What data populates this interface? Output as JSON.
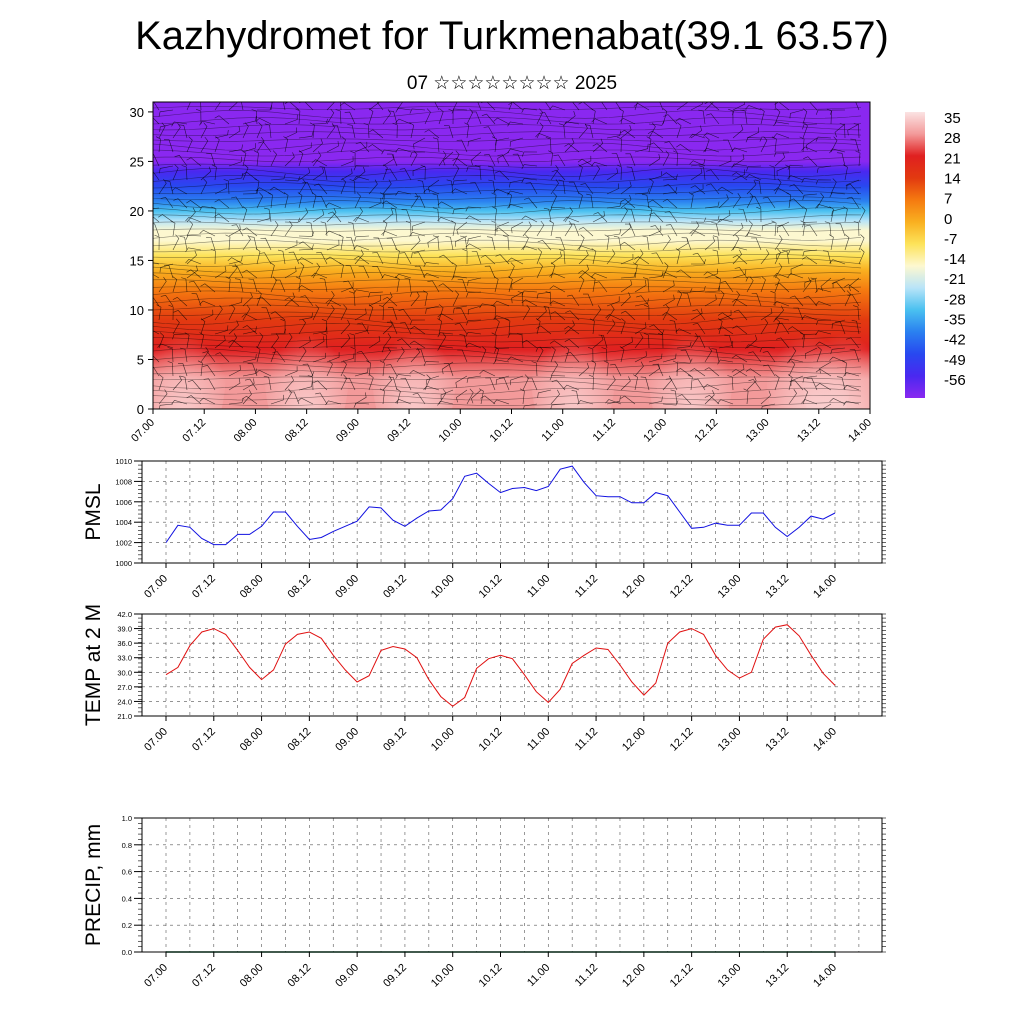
{
  "header": {
    "title": "Kazhydromet for Turkmenabat(39.1 63.57)",
    "subtitle": "07 ☆☆☆☆☆☆☆☆ 2025"
  },
  "time_ticks": [
    "07.00",
    "07.12",
    "08.00",
    "08.12",
    "09.00",
    "09.12",
    "10.00",
    "10.12",
    "11.00",
    "11.12",
    "12.00",
    "12.12",
    "13.00",
    "13.12",
    "14.00"
  ],
  "chart_data": [
    {
      "type": "heatmap",
      "title": "",
      "xlabel": "",
      "ylabel": "",
      "ylim": [
        0,
        31
      ],
      "y_ticks": [
        0,
        5,
        10,
        15,
        20,
        25,
        30
      ],
      "x_ticks": [
        "07.00",
        "07.12",
        "08.00",
        "08.12",
        "09.00",
        "09.12",
        "10.00",
        "10.12",
        "11.00",
        "11.12",
        "12.00",
        "12.12",
        "13.00",
        "13.12",
        "14.00"
      ],
      "colorbar": {
        "labels": [
          35,
          28,
          21,
          14,
          7,
          0,
          -7,
          -14,
          -21,
          -28,
          -35,
          -42,
          -49,
          -56
        ],
        "colors": [
          "#fbe3e3",
          "#f39a9a",
          "#e02020",
          "#e23a10",
          "#f57a10",
          "#f9b020",
          "#fde35a",
          "#fdf8d0",
          "#b8e4f8",
          "#4ac0f0",
          "#2a80f0",
          "#2848f0",
          "#4a28f0",
          "#8a28f0"
        ]
      },
      "profile": {
        "altitude": [
          0,
          3,
          6,
          9,
          12,
          14,
          15.5,
          17,
          18,
          19,
          20,
          21,
          22.5,
          24,
          25,
          26.5,
          28,
          31
        ],
        "temperature": [
          30,
          28,
          21,
          14,
          7,
          2,
          -4,
          -9,
          -13,
          -18,
          -24,
          -32,
          -40,
          -49,
          -56,
          -60,
          -62,
          -62
        ]
      },
      "wind_barbs": true
    },
    {
      "type": "line",
      "ylabel": "PMSL",
      "ylim": [
        1000,
        1010
      ],
      "y_ticks": [
        1000,
        1002,
        1004,
        1006,
        1008,
        1010
      ],
      "x_ticks": [
        "07.00",
        "07.12",
        "08.00",
        "08.12",
        "09.00",
        "09.12",
        "10.00",
        "10.12",
        "11.00",
        "11.12",
        "12.00",
        "12.12",
        "13.00",
        "13.12",
        "14.00"
      ],
      "series": [
        {
          "color": "#1010e0",
          "values": [
            1002.0,
            1003.7,
            1003.5,
            1002.4,
            1001.8,
            1001.8,
            1002.8,
            1002.8,
            1003.6,
            1005.0,
            1005.0,
            1003.6,
            1002.3,
            1002.5,
            1003.1,
            1003.6,
            1004.1,
            1005.5,
            1005.4,
            1004.2,
            1003.6,
            1004.4,
            1005.1,
            1005.2,
            1006.3,
            1008.5,
            1008.8,
            1007.8,
            1006.9,
            1007.3,
            1007.4,
            1007.1,
            1007.5,
            1009.2,
            1009.5,
            1007.9,
            1006.6,
            1006.5,
            1006.5,
            1005.9,
            1005.9,
            1006.9,
            1006.6,
            1005.0,
            1003.4,
            1003.5,
            1003.9,
            1003.7,
            1003.7,
            1004.9,
            1004.9,
            1003.5,
            1002.6,
            1003.5,
            1004.6,
            1004.3,
            1004.9
          ]
        }
      ]
    },
    {
      "type": "line",
      "ylabel": "TEMP at 2 M",
      "ylim": [
        21,
        42
      ],
      "y_ticks": [
        21.0,
        24.0,
        27.0,
        30.0,
        33.0,
        36.0,
        39.0,
        42.0
      ],
      "x_ticks": [
        "07.00",
        "07.12",
        "08.00",
        "08.12",
        "09.00",
        "09.12",
        "10.00",
        "10.12",
        "11.00",
        "11.12",
        "12.00",
        "12.12",
        "13.00",
        "13.12",
        "14.00"
      ],
      "series": [
        {
          "color": "#e01010",
          "values": [
            29.5,
            31.0,
            35.5,
            38.3,
            39.0,
            37.8,
            34.5,
            31.0,
            28.5,
            30.5,
            35.8,
            37.8,
            38.3,
            37.0,
            33.5,
            30.5,
            28.0,
            29.3,
            34.5,
            35.3,
            34.8,
            33.0,
            28.5,
            25.0,
            23.0,
            24.8,
            30.8,
            32.8,
            33.5,
            32.8,
            29.5,
            26.0,
            23.8,
            26.5,
            31.8,
            33.5,
            35.0,
            34.7,
            31.5,
            28.0,
            25.3,
            27.8,
            36.0,
            38.3,
            39.0,
            37.8,
            33.5,
            30.5,
            28.8,
            30.0,
            36.8,
            39.3,
            39.8,
            37.5,
            33.5,
            29.8,
            27.3
          ]
        }
      ]
    },
    {
      "type": "line",
      "ylabel": "PRECIP, mm",
      "ylim": [
        0.0,
        1.0
      ],
      "y_ticks": [
        0.0,
        0.2,
        0.4,
        0.6,
        0.8,
        1.0
      ],
      "x_ticks": [
        "07.00",
        "07.12",
        "08.00",
        "08.12",
        "09.00",
        "09.12",
        "10.00",
        "10.12",
        "11.00",
        "11.12",
        "12.00",
        "12.12",
        "13.00",
        "13.12",
        "14.00"
      ],
      "series": [
        {
          "color": "#0a6a3a",
          "values": [
            0,
            0,
            0,
            0,
            0,
            0,
            0,
            0,
            0,
            0,
            0,
            0,
            0,
            0,
            0,
            0,
            0,
            0,
            0,
            0,
            0,
            0,
            0,
            0,
            0,
            0,
            0,
            0,
            0,
            0,
            0,
            0,
            0,
            0,
            0,
            0,
            0,
            0,
            0,
            0,
            0,
            0,
            0,
            0,
            0,
            0,
            0,
            0,
            0,
            0,
            0,
            0,
            0,
            0,
            0,
            0,
            0
          ]
        }
      ]
    }
  ]
}
